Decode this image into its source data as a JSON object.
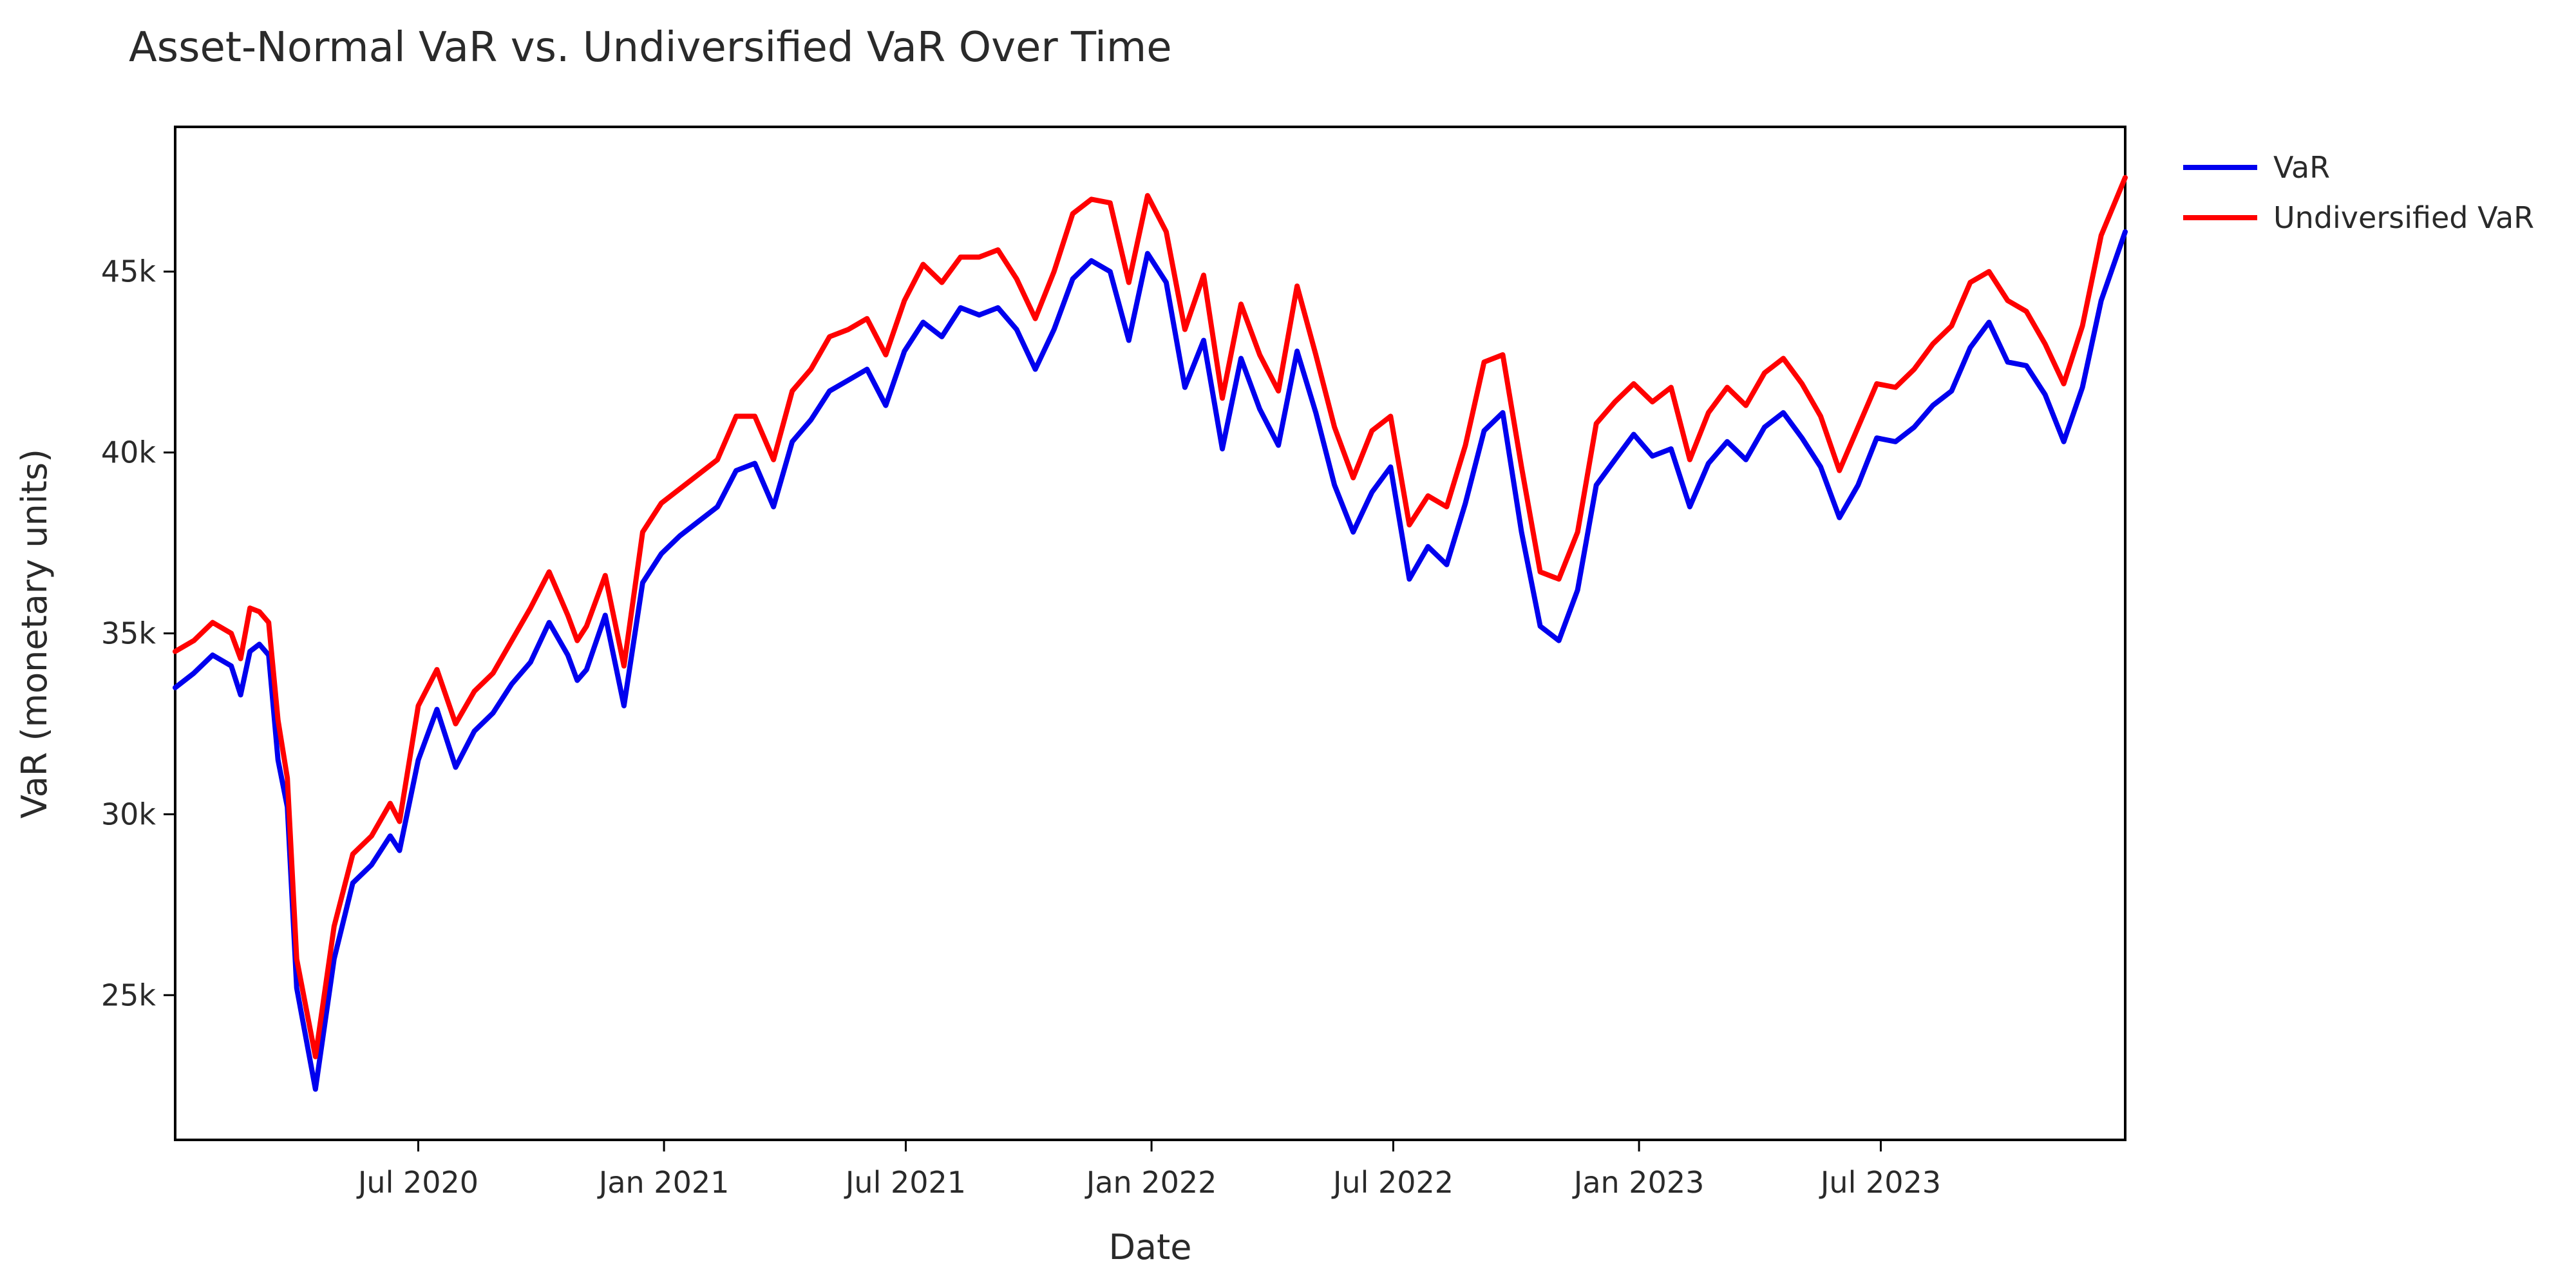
{
  "chart_data": {
    "type": "line",
    "title": "Asset-Normal VaR vs. Undiversified VaR Over Time",
    "xlabel": "Date",
    "ylabel": "VaR (monetary units)",
    "xlim": [
      "2020-01-01",
      "2023-12-31"
    ],
    "ylim": [
      21000,
      49000
    ],
    "x_ticks": [
      {
        "date": "2020-07-01",
        "label": "Jul 2020"
      },
      {
        "date": "2021-01-01",
        "label": "Jan 2021"
      },
      {
        "date": "2021-07-01",
        "label": "Jul 2021"
      },
      {
        "date": "2022-01-01",
        "label": "Jan 2022"
      },
      {
        "date": "2022-07-01",
        "label": "Jul 2022"
      },
      {
        "date": "2023-01-01",
        "label": "Jan 2023"
      },
      {
        "date": "2023-07-01",
        "label": "Jul 2023"
      }
    ],
    "y_ticks": [
      {
        "value": 25000,
        "label": "25k"
      },
      {
        "value": 30000,
        "label": "30k"
      },
      {
        "value": 35000,
        "label": "35k"
      },
      {
        "value": 40000,
        "label": "40k"
      },
      {
        "value": 45000,
        "label": "45k"
      }
    ],
    "grid": false,
    "legend_position": "top-right, outside plot",
    "x": [
      "2020-01-01",
      "2020-01-15",
      "2020-01-29",
      "2020-02-12",
      "2020-02-19",
      "2020-02-26",
      "2020-03-04",
      "2020-03-11",
      "2020-03-18",
      "2020-03-25",
      "2020-04-01",
      "2020-04-15",
      "2020-04-29",
      "2020-05-13",
      "2020-05-27",
      "2020-06-10",
      "2020-06-17",
      "2020-07-01",
      "2020-07-15",
      "2020-07-29",
      "2020-08-12",
      "2020-08-26",
      "2020-09-09",
      "2020-09-23",
      "2020-10-07",
      "2020-10-21",
      "2020-10-28",
      "2020-11-04",
      "2020-11-18",
      "2020-12-02",
      "2020-12-16",
      "2020-12-30",
      "2021-01-13",
      "2021-01-27",
      "2021-02-10",
      "2021-02-24",
      "2021-03-10",
      "2021-03-24",
      "2021-04-07",
      "2021-04-21",
      "2021-05-05",
      "2021-05-19",
      "2021-06-02",
      "2021-06-16",
      "2021-06-30",
      "2021-07-14",
      "2021-07-28",
      "2021-08-11",
      "2021-08-25",
      "2021-09-08",
      "2021-09-22",
      "2021-10-06",
      "2021-10-20",
      "2021-11-03",
      "2021-11-17",
      "2021-12-01",
      "2021-12-15",
      "2021-12-29",
      "2022-01-12",
      "2022-01-26",
      "2022-02-09",
      "2022-02-23",
      "2022-03-09",
      "2022-03-23",
      "2022-04-06",
      "2022-04-20",
      "2022-05-04",
      "2022-05-18",
      "2022-06-01",
      "2022-06-15",
      "2022-06-29",
      "2022-07-13",
      "2022-07-27",
      "2022-08-10",
      "2022-08-24",
      "2022-09-07",
      "2022-09-21",
      "2022-10-05",
      "2022-10-19",
      "2022-11-02",
      "2022-11-16",
      "2022-11-30",
      "2022-12-14",
      "2022-12-28",
      "2023-01-11",
      "2023-01-25",
      "2023-02-08",
      "2023-02-22",
      "2023-03-08",
      "2023-03-22",
      "2023-04-05",
      "2023-04-19",
      "2023-05-03",
      "2023-05-17",
      "2023-05-31",
      "2023-06-14",
      "2023-06-28",
      "2023-07-12",
      "2023-07-26",
      "2023-08-09",
      "2023-08-23",
      "2023-09-06",
      "2023-09-20",
      "2023-10-04",
      "2023-10-18",
      "2023-11-01",
      "2023-11-15",
      "2023-11-29",
      "2023-12-13",
      "2023-12-31"
    ],
    "series": [
      {
        "name": "VaR",
        "color": "#0000ee",
        "values": [
          33500,
          33900,
          34400,
          34100,
          33300,
          34500,
          34700,
          34400,
          31500,
          30200,
          25200,
          22400,
          26000,
          28100,
          28600,
          29400,
          29000,
          31500,
          32900,
          31300,
          32300,
          32800,
          33600,
          34200,
          35300,
          34400,
          33700,
          34000,
          35500,
          33000,
          36400,
          37200,
          37700,
          38100,
          38500,
          39500,
          39700,
          38500,
          40300,
          40900,
          41700,
          42000,
          42300,
          41300,
          42800,
          43600,
          43200,
          44000,
          43800,
          44000,
          43400,
          42300,
          43400,
          44800,
          45300,
          45000,
          43100,
          45500,
          44700,
          41800,
          43100,
          40100,
          42600,
          41200,
          40200,
          42800,
          41100,
          39100,
          37800,
          38900,
          39600,
          36500,
          37400,
          36900,
          38600,
          40600,
          41100,
          37800,
          35200,
          34800,
          36200,
          39100,
          39800,
          40500,
          39900,
          40100,
          38500,
          39700,
          40300,
          39800,
          40700,
          41100,
          40400,
          39600,
          38200,
          39100,
          40400,
          40300,
          40700,
          41300,
          41700,
          42900,
          43600,
          42500,
          42400,
          41600,
          40300,
          41800,
          44200,
          46100
        ]
      },
      {
        "name": "Undiversified VaR",
        "color": "#ff0000",
        "values": [
          34500,
          34800,
          35300,
          35000,
          34300,
          35700,
          35600,
          35300,
          32600,
          31000,
          26000,
          23300,
          26900,
          28900,
          29400,
          30300,
          29800,
          33000,
          34000,
          32500,
          33400,
          33900,
          34800,
          35700,
          36700,
          35500,
          34800,
          35200,
          36600,
          34100,
          37800,
          38600,
          39000,
          39400,
          39800,
          41000,
          41000,
          39800,
          41700,
          42300,
          43200,
          43400,
          43700,
          42700,
          44200,
          45200,
          44700,
          45400,
          45400,
          45600,
          44800,
          43700,
          45000,
          46600,
          47000,
          46900,
          44700,
          47100,
          46100,
          43400,
          44900,
          41500,
          44100,
          42700,
          41700,
          44600,
          42700,
          40700,
          39300,
          40600,
          41000,
          38000,
          38800,
          38500,
          40200,
          42500,
          42700,
          39600,
          36700,
          36500,
          37800,
          40800,
          41400,
          41900,
          41400,
          41800,
          39800,
          41100,
          41800,
          41300,
          42200,
          42600,
          41900,
          41000,
          39500,
          40700,
          41900,
          41800,
          42300,
          43000,
          43500,
          44700,
          45000,
          44200,
          43900,
          43000,
          41900,
          43500,
          46000,
          47600
        ]
      }
    ]
  }
}
